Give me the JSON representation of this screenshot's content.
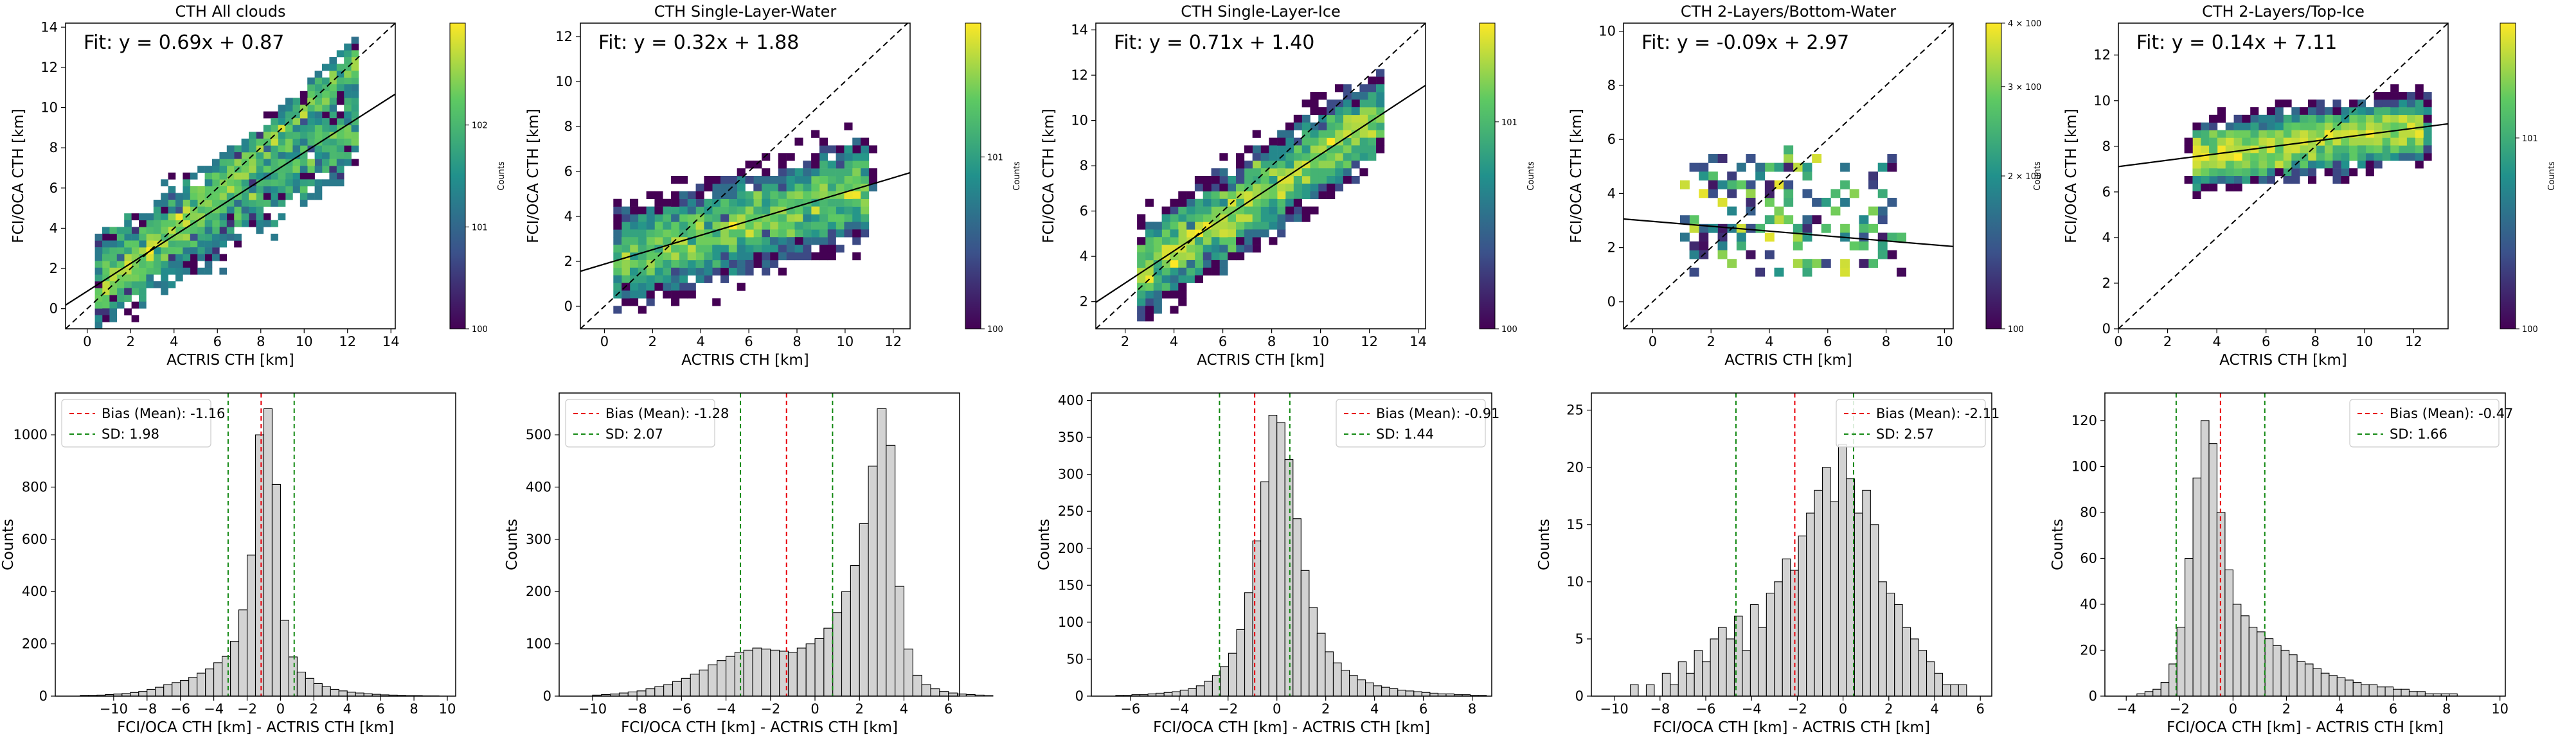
{
  "chart_data": [
    {
      "type": "heatmap",
      "title": "CTH All clouds",
      "xlabel": "ACTRIS CTH [km]",
      "ylabel": "FCI/OCA CTH [km]",
      "xlim": [
        -1,
        14.2
      ],
      "ylim": [
        -1,
        14.2
      ],
      "xticks": [
        0,
        2,
        4,
        6,
        8,
        10,
        12,
        14
      ],
      "yticks": [
        0,
        2,
        4,
        6,
        8,
        10,
        12,
        14
      ],
      "fit": {
        "label": "Fit: y = 0.69x + 0.87",
        "slope": 0.69,
        "intercept": 0.87
      },
      "cluster": {
        "x0": 0.5,
        "x1": 12.5,
        "spread": 1.6,
        "bins": 45
      },
      "colorbar": {
        "label": "Counts",
        "scale": "log",
        "vmin": 1,
        "vmax": 1000,
        "ticks": [
          "10^0",
          "10^1",
          "10^2"
        ],
        "tick_values": [
          1,
          10,
          100
        ]
      }
    },
    {
      "type": "heatmap",
      "title": "CTH Single-Layer-Water",
      "xlabel": "ACTRIS CTH [km]",
      "ylabel": "FCI/OCA CTH [km]",
      "xlim": [
        -1,
        12.7
      ],
      "ylim": [
        -1,
        12.6
      ],
      "xticks": [
        0,
        2,
        4,
        6,
        8,
        10,
        12
      ],
      "yticks": [
        0,
        2,
        4,
        6,
        8,
        10,
        12
      ],
      "fit": {
        "label": "Fit: y = 0.32x + 1.88",
        "slope": 0.32,
        "intercept": 1.88
      },
      "cluster": {
        "x0": 0.5,
        "x1": 11,
        "spread": 1.4,
        "bins": 40
      },
      "colorbar": {
        "label": "Counts",
        "scale": "log",
        "vmin": 1,
        "vmax": 60,
        "ticks": [
          "10^0",
          "10^1"
        ],
        "tick_values": [
          1,
          10
        ]
      }
    },
    {
      "type": "heatmap",
      "title": "CTH Single-Layer-Ice",
      "xlabel": "ACTRIS CTH [km]",
      "ylabel": "FCI/OCA CTH [km]",
      "xlim": [
        0.8,
        14.3
      ],
      "ylim": [
        0.8,
        14.3
      ],
      "xticks": [
        2,
        4,
        6,
        8,
        10,
        12,
        14
      ],
      "yticks": [
        2,
        4,
        6,
        8,
        10,
        12,
        14
      ],
      "fit": {
        "label": "Fit: y = 0.71x + 1.40",
        "slope": 0.71,
        "intercept": 1.4
      },
      "cluster": {
        "x0": 2.5,
        "x1": 12.5,
        "spread": 1.3,
        "bins": 40
      },
      "colorbar": {
        "label": "Counts",
        "scale": "log",
        "vmin": 1,
        "vmax": 30,
        "ticks": [
          "10^0",
          "10^1"
        ],
        "tick_values": [
          1,
          10
        ]
      }
    },
    {
      "type": "heatmap",
      "title": "CTH 2-Layers/Bottom-Water",
      "xlabel": "ACTRIS CTH [km]",
      "ylabel": "FCI/OCA CTH [km]",
      "xlim": [
        -1,
        10.3
      ],
      "ylim": [
        -1,
        10.3
      ],
      "xticks": [
        0,
        2,
        4,
        6,
        8,
        10
      ],
      "yticks": [
        0,
        2,
        4,
        6,
        8,
        10
      ],
      "fit": {
        "label": "Fit: y = -0.09x + 2.97",
        "slope": -0.09,
        "intercept": 2.97
      },
      "cluster": {
        "x0": 1,
        "x1": 8.5,
        "spread": 1.2,
        "bins": 35
      },
      "colorbar": {
        "label": "Counts",
        "scale": "log",
        "vmin": 1,
        "vmax": 4,
        "ticks": [
          "10^0",
          "2 × 10^0",
          "3 × 10^0",
          "4 × 10^0"
        ],
        "tick_values": [
          1,
          2,
          3,
          4
        ]
      }
    },
    {
      "type": "heatmap",
      "title": "CTH 2-Layers/Top-Ice",
      "xlabel": "ACTRIS CTH [km]",
      "ylabel": "FCI/OCA CTH [km]",
      "xlim": [
        0,
        13.4
      ],
      "ylim": [
        0,
        13.4
      ],
      "xticks": [
        0,
        2,
        4,
        6,
        8,
        10,
        12
      ],
      "yticks": [
        0,
        2,
        4,
        6,
        8,
        10,
        12
      ],
      "fit": {
        "label": "Fit: y = 0.14x + 7.11",
        "slope": 0.14,
        "intercept": 7.11
      },
      "cluster": {
        "x0": 3,
        "x1": 12.5,
        "spread": 0.9,
        "bins": 40
      },
      "colorbar": {
        "label": "Counts",
        "scale": "log",
        "vmin": 1,
        "vmax": 40,
        "ticks": [
          "10^0",
          "10^1"
        ],
        "tick_values": [
          1,
          10
        ]
      }
    },
    {
      "type": "bar",
      "xlabel": "FCI/OCA CTH [km] - ACTRIS CTH [km]",
      "ylabel": "Counts",
      "xlim": [
        -13.5,
        10.5
      ],
      "ylim": [
        0,
        1160
      ],
      "xticks": [
        -10,
        -8,
        -6,
        -4,
        -2,
        0,
        2,
        4,
        6,
        8,
        10
      ],
      "yticks": [
        0,
        200,
        400,
        600,
        800,
        1000
      ],
      "bin_width": 0.5,
      "bin_start": -12,
      "counts": [
        3,
        3,
        4,
        6,
        8,
        10,
        14,
        18,
        26,
        34,
        44,
        52,
        60,
        72,
        88,
        104,
        128,
        152,
        210,
        330,
        540,
        1000,
        1100,
        810,
        290,
        150,
        92,
        68,
        48,
        36,
        26,
        20,
        15,
        12,
        9,
        7,
        5,
        4,
        3,
        2,
        2,
        1,
        1
      ],
      "bias": -1.16,
      "sd": 1.98,
      "legend": {
        "bias_label": "Bias (Mean): -1.16",
        "sd_label": "SD: 1.98",
        "placement": "top-left"
      }
    },
    {
      "type": "bar",
      "xlabel": "FCI/OCA CTH [km] - ACTRIS CTH [km]",
      "ylabel": "Counts",
      "xlim": [
        -11.5,
        6.5
      ],
      "ylim": [
        0,
        580
      ],
      "xticks": [
        -10,
        -8,
        -6,
        -4,
        -2,
        0,
        2,
        4,
        6
      ],
      "yticks": [
        0,
        100,
        200,
        300,
        400,
        500
      ],
      "bin_width": 0.4,
      "bin_start": -10,
      "counts": [
        2,
        3,
        4,
        6,
        8,
        10,
        14,
        18,
        22,
        28,
        34,
        42,
        50,
        60,
        68,
        76,
        84,
        88,
        92,
        90,
        88,
        86,
        84,
        92,
        100,
        110,
        130,
        160,
        200,
        250,
        330,
        440,
        550,
        480,
        210,
        90,
        40,
        22,
        14,
        9,
        6,
        4,
        3,
        2,
        1
      ],
      "bias": -1.28,
      "sd": 2.07,
      "legend": {
        "bias_label": "Bias (Mean): -1.28",
        "sd_label": "SD: 2.07",
        "placement": "top-left"
      }
    },
    {
      "type": "bar",
      "xlabel": "FCI/OCA CTH [km] - ACTRIS CTH [km]",
      "ylabel": "Counts",
      "xlim": [
        -7.6,
        8.8
      ],
      "ylim": [
        0,
        410
      ],
      "xticks": [
        -6,
        -4,
        -2,
        0,
        2,
        4,
        6,
        8
      ],
      "yticks": [
        0,
        50,
        100,
        150,
        200,
        250,
        300,
        350,
        400
      ],
      "bin_width": 0.33,
      "bin_start": -6.6,
      "counts": [
        1,
        1,
        2,
        2,
        3,
        4,
        5,
        6,
        8,
        10,
        14,
        20,
        28,
        40,
        58,
        90,
        140,
        210,
        290,
        380,
        370,
        320,
        240,
        170,
        120,
        85,
        60,
        45,
        35,
        28,
        22,
        18,
        14,
        12,
        10,
        8,
        7,
        6,
        5,
        4,
        3,
        3,
        2,
        2,
        1,
        1
      ],
      "bias": -0.91,
      "sd": 1.44,
      "legend": {
        "bias_label": "Bias (Mean): -0.91",
        "sd_label": "SD: 1.44",
        "placement": "top-right"
      }
    },
    {
      "type": "bar",
      "xlabel": "FCI/OCA CTH [km] - ACTRIS CTH [km]",
      "ylabel": "Counts",
      "xlim": [
        -11,
        6.5
      ],
      "ylim": [
        0,
        26.5
      ],
      "xticks": [
        -10,
        -8,
        -6,
        -4,
        -2,
        0,
        2,
        4,
        6
      ],
      "yticks": [
        0,
        5,
        10,
        15,
        20,
        25
      ],
      "bin_width": 0.35,
      "bin_start": -9.3,
      "counts": [
        1,
        0,
        1,
        0,
        2,
        1,
        3,
        2,
        4,
        3,
        5,
        6,
        5,
        7,
        4,
        8,
        6,
        9,
        10,
        12,
        11,
        14,
        16,
        18,
        20,
        17,
        22,
        19,
        16,
        18,
        15,
        10,
        9,
        8,
        6,
        5,
        4,
        3,
        2,
        1,
        1,
        1
      ],
      "bias": -2.11,
      "sd": 2.57,
      "legend": {
        "bias_label": "Bias (Mean): -2.11",
        "sd_label": "SD: 2.57",
        "placement": "top-right"
      }
    },
    {
      "type": "bar",
      "xlabel": "FCI/OCA CTH [km] - ACTRIS CTH [km]",
      "ylabel": "Counts",
      "xlim": [
        -4.8,
        10.2
      ],
      "ylim": [
        0,
        132
      ],
      "xticks": [
        -4,
        -2,
        0,
        2,
        4,
        6,
        8,
        10
      ],
      "yticks": [
        0,
        20,
        40,
        60,
        80,
        100,
        120
      ],
      "bin_width": 0.3,
      "bin_start": -3.6,
      "counts": [
        1,
        2,
        3,
        6,
        14,
        30,
        60,
        95,
        120,
        110,
        80,
        55,
        40,
        35,
        30,
        28,
        25,
        22,
        20,
        18,
        15,
        14,
        12,
        10,
        9,
        8,
        7,
        6,
        5,
        5,
        4,
        4,
        3,
        3,
        2,
        2,
        1,
        1,
        1,
        1
      ],
      "bias": -0.47,
      "sd": 1.66,
      "legend": {
        "bias_label": "Bias (Mean): -0.47",
        "sd_label": "SD: 1.66",
        "placement": "top-right"
      }
    }
  ]
}
